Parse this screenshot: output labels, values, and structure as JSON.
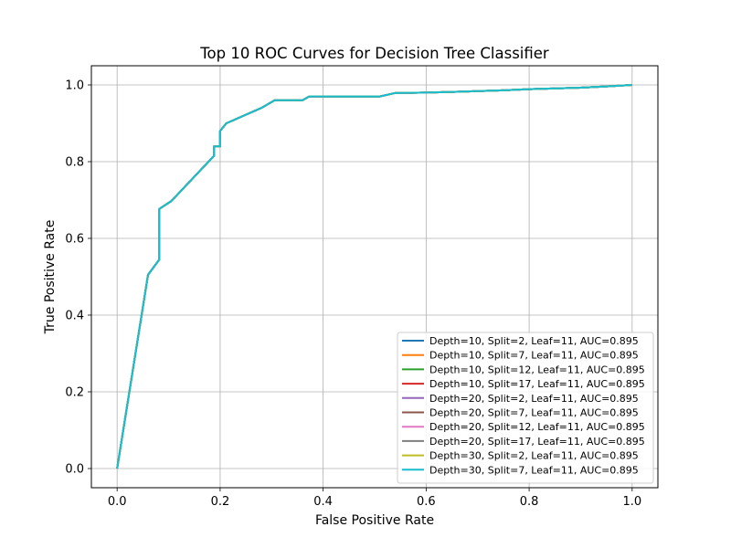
{
  "chart_data": {
    "type": "line",
    "title": "Top 10 ROC Curves for Decision Tree Classifier",
    "xlabel": "False Positive Rate",
    "ylabel": "True Positive Rate",
    "xlim": [
      -0.05,
      1.05
    ],
    "ylim": [
      -0.05,
      1.05
    ],
    "xticks": [
      "0.0",
      "0.2",
      "0.4",
      "0.6",
      "0.8",
      "1.0"
    ],
    "yticks": [
      "0.0",
      "0.2",
      "0.4",
      "0.6",
      "0.8",
      "1.0"
    ],
    "grid": true,
    "legend_position": "lower-right",
    "x": [
      0.0,
      0.06,
      0.082,
      0.082,
      0.105,
      0.188,
      0.188,
      0.2,
      0.2,
      0.212,
      0.28,
      0.306,
      0.36,
      0.373,
      0.51,
      0.54,
      0.6,
      0.68,
      0.75,
      0.8,
      0.9,
      0.95,
      1.0
    ],
    "series": [
      {
        "name": "Depth=10, Split=2, Leaf=11, AUC=0.895",
        "color": "#1f77b4",
        "y": [
          0.0,
          0.505,
          0.545,
          0.677,
          0.697,
          0.815,
          0.84,
          0.84,
          0.88,
          0.9,
          0.94,
          0.96,
          0.96,
          0.97,
          0.97,
          0.979,
          0.98,
          0.983,
          0.986,
          0.989,
          0.993,
          0.996,
          1.0
        ]
      },
      {
        "name": "Depth=10, Split=7, Leaf=11, AUC=0.895",
        "color": "#ff7f0e",
        "y": [
          0.0,
          0.505,
          0.545,
          0.677,
          0.697,
          0.815,
          0.84,
          0.84,
          0.88,
          0.9,
          0.94,
          0.96,
          0.96,
          0.97,
          0.97,
          0.979,
          0.98,
          0.983,
          0.986,
          0.989,
          0.993,
          0.996,
          1.0
        ]
      },
      {
        "name": "Depth=10, Split=12, Leaf=11, AUC=0.895",
        "color": "#2ca02c",
        "y": [
          0.0,
          0.505,
          0.545,
          0.677,
          0.697,
          0.815,
          0.84,
          0.84,
          0.88,
          0.9,
          0.94,
          0.96,
          0.96,
          0.97,
          0.97,
          0.979,
          0.98,
          0.983,
          0.986,
          0.989,
          0.993,
          0.996,
          1.0
        ]
      },
      {
        "name": "Depth=10, Split=17, Leaf=11, AUC=0.895",
        "color": "#d62728",
        "y": [
          0.0,
          0.505,
          0.545,
          0.677,
          0.697,
          0.815,
          0.84,
          0.84,
          0.88,
          0.9,
          0.94,
          0.96,
          0.96,
          0.97,
          0.97,
          0.979,
          0.98,
          0.983,
          0.986,
          0.989,
          0.993,
          0.996,
          1.0
        ]
      },
      {
        "name": "Depth=20, Split=2, Leaf=11, AUC=0.895",
        "color": "#9467bd",
        "y": [
          0.0,
          0.505,
          0.545,
          0.677,
          0.697,
          0.815,
          0.84,
          0.84,
          0.88,
          0.9,
          0.94,
          0.96,
          0.96,
          0.97,
          0.97,
          0.979,
          0.98,
          0.983,
          0.986,
          0.989,
          0.993,
          0.996,
          1.0
        ]
      },
      {
        "name": "Depth=20, Split=7, Leaf=11, AUC=0.895",
        "color": "#8c564b",
        "y": [
          0.0,
          0.505,
          0.545,
          0.677,
          0.697,
          0.815,
          0.84,
          0.84,
          0.88,
          0.9,
          0.94,
          0.96,
          0.96,
          0.97,
          0.97,
          0.979,
          0.98,
          0.983,
          0.986,
          0.989,
          0.993,
          0.996,
          1.0
        ]
      },
      {
        "name": "Depth=20, Split=12, Leaf=11, AUC=0.895",
        "color": "#e377c2",
        "y": [
          0.0,
          0.505,
          0.545,
          0.677,
          0.697,
          0.815,
          0.84,
          0.84,
          0.88,
          0.9,
          0.94,
          0.96,
          0.96,
          0.97,
          0.97,
          0.979,
          0.98,
          0.983,
          0.986,
          0.989,
          0.993,
          0.996,
          1.0
        ]
      },
      {
        "name": "Depth=20, Split=17, Leaf=11, AUC=0.895",
        "color": "#7f7f7f",
        "y": [
          0.0,
          0.505,
          0.545,
          0.677,
          0.697,
          0.815,
          0.84,
          0.84,
          0.88,
          0.9,
          0.94,
          0.96,
          0.96,
          0.97,
          0.97,
          0.979,
          0.98,
          0.983,
          0.986,
          0.989,
          0.993,
          0.996,
          1.0
        ]
      },
      {
        "name": "Depth=30, Split=2, Leaf=11, AUC=0.895",
        "color": "#bcbd22",
        "y": [
          0.0,
          0.505,
          0.545,
          0.677,
          0.697,
          0.815,
          0.84,
          0.84,
          0.88,
          0.9,
          0.94,
          0.96,
          0.96,
          0.97,
          0.97,
          0.979,
          0.98,
          0.983,
          0.986,
          0.989,
          0.993,
          0.996,
          1.0
        ]
      },
      {
        "name": "Depth=30, Split=7, Leaf=11, AUC=0.895",
        "color": "#17becf",
        "y": [
          0.0,
          0.505,
          0.545,
          0.677,
          0.697,
          0.815,
          0.84,
          0.84,
          0.88,
          0.9,
          0.94,
          0.96,
          0.96,
          0.97,
          0.97,
          0.979,
          0.98,
          0.983,
          0.986,
          0.989,
          0.993,
          0.996,
          1.0
        ]
      }
    ]
  }
}
